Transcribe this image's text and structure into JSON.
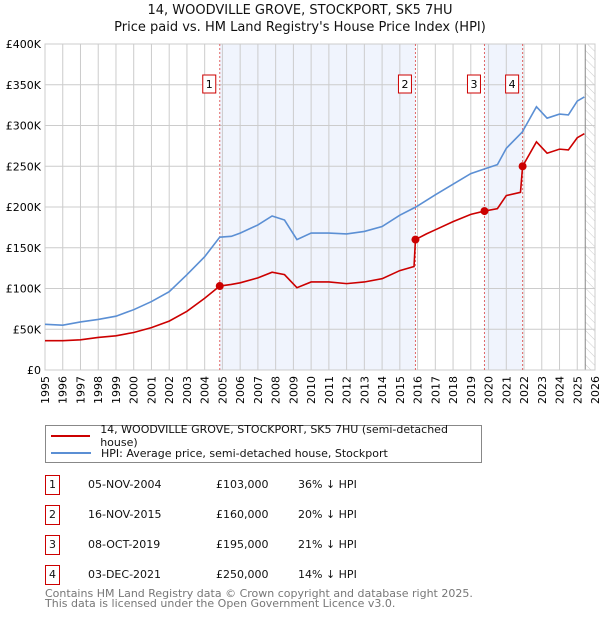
{
  "title": "14, WOODVILLE GROVE, STOCKPORT, SK5 7HU",
  "subtitle": "Price paid vs. HM Land Registry's House Price Index (HPI)",
  "chart_data": {
    "type": "line",
    "xlim": [
      1995,
      2026
    ],
    "ylim": [
      0,
      400000
    ],
    "x_ticks": [
      "1995",
      "1996",
      "1997",
      "1998",
      "1999",
      "2000",
      "2001",
      "2002",
      "2003",
      "2004",
      "2005",
      "2006",
      "2007",
      "2008",
      "2009",
      "2010",
      "2011",
      "2012",
      "2013",
      "2014",
      "2015",
      "2016",
      "2017",
      "2018",
      "2019",
      "2020",
      "2021",
      "2022",
      "2023",
      "2024",
      "2025",
      "2026"
    ],
    "y_ticks": [
      {
        "v": 0,
        "label": "£0"
      },
      {
        "v": 50000,
        "label": "£50K"
      },
      {
        "v": 100000,
        "label": "£100K"
      },
      {
        "v": 150000,
        "label": "£150K"
      },
      {
        "v": 200000,
        "label": "£200K"
      },
      {
        "v": 250000,
        "label": "£250K"
      },
      {
        "v": 300000,
        "label": "£300K"
      },
      {
        "v": 350000,
        "label": "£350K"
      },
      {
        "v": 400000,
        "label": "£400K"
      }
    ],
    "shaded_ranges": [
      [
        2004.85,
        2015.88
      ],
      [
        2019.77,
        2021.92
      ]
    ],
    "forecast_start": 2025.45,
    "series": [
      {
        "name": "14, WOODVILLE GROVE, STOCKPORT, SK5 7HU (semi-detached house)",
        "color": "#cc0000",
        "x": [
          1995,
          1996,
          1997,
          1998,
          1999,
          2000,
          2001,
          2002,
          2003,
          2004,
          2004.85,
          2005.5,
          2006,
          2007,
          2007.8,
          2008.5,
          2009.2,
          2010,
          2011,
          2012,
          2013,
          2014,
          2015,
          2015.8,
          2015.88,
          2016.5,
          2017,
          2018,
          2019,
          2019.77,
          2020.5,
          2021,
          2021.8,
          2021.92,
          2022.7,
          2023.3,
          2024,
          2024.5,
          2025,
          2025.4
        ],
        "y": [
          36000,
          36000,
          37000,
          40000,
          42000,
          46000,
          52000,
          60000,
          72000,
          88000,
          103000,
          105000,
          107000,
          113000,
          120000,
          117000,
          101000,
          108000,
          108000,
          106000,
          108000,
          112000,
          122000,
          127000,
          160000,
          167000,
          172000,
          182000,
          191000,
          195000,
          198000,
          214000,
          218000,
          250000,
          280000,
          266000,
          271000,
          270000,
          285000,
          290000
        ]
      },
      {
        "name": "HPI: Average price, semi-detached house, Stockport",
        "color": "#5b8fd4",
        "x": [
          1995,
          1996,
          1997,
          1998,
          1999,
          2000,
          2001,
          2002,
          2003,
          2004,
          2004.85,
          2005.5,
          2006,
          2007,
          2007.8,
          2008.5,
          2009.2,
          2010,
          2011,
          2012,
          2013,
          2014,
          2015,
          2015.9,
          2017,
          2018,
          2019,
          2019.8,
          2020.5,
          2021,
          2021.9,
          2022.7,
          2023.3,
          2024,
          2024.5,
          2025,
          2025.4
        ],
        "y": [
          56000,
          55000,
          59000,
          62000,
          66000,
          74000,
          84000,
          96000,
          117000,
          139000,
          163000,
          164000,
          168000,
          178000,
          189000,
          184000,
          160000,
          168000,
          168000,
          167000,
          170000,
          176000,
          190000,
          200000,
          215000,
          228000,
          241000,
          247000,
          252000,
          272000,
          292000,
          323000,
          309000,
          314000,
          313000,
          330000,
          335000
        ]
      }
    ],
    "sales": [
      {
        "n": "1",
        "date": "05-NOV-2004",
        "x": 2004.85,
        "price_value": 103000,
        "price": "£103,000",
        "hpi": "36% ↓ HPI"
      },
      {
        "n": "2",
        "date": "16-NOV-2015",
        "x": 2015.88,
        "price_value": 160000,
        "price": "£160,000",
        "hpi": "20% ↓ HPI"
      },
      {
        "n": "3",
        "date": "08-OCT-2019",
        "x": 2019.77,
        "price_value": 195000,
        "price": "£195,000",
        "hpi": "21% ↓ HPI"
      },
      {
        "n": "4",
        "date": "03-DEC-2021",
        "x": 2021.92,
        "price_value": 250000,
        "price": "£250,000",
        "hpi": "14% ↓ HPI"
      }
    ]
  },
  "legend": {
    "property": "14, WOODVILLE GROVE, STOCKPORT, SK5 7HU (semi-detached house)",
    "hpi": "HPI: Average price, semi-detached house, Stockport"
  },
  "footer": {
    "line1": "Contains HM Land Registry data © Crown copyright and database right 2025.",
    "line2": "This data is licensed under the Open Government Licence v3.0."
  }
}
